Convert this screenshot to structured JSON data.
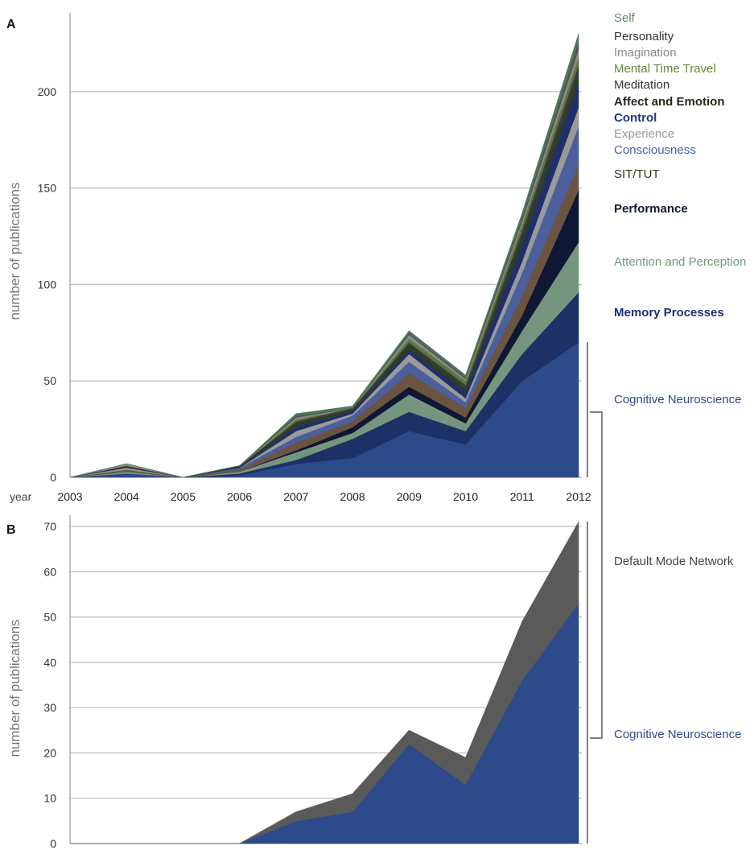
{
  "chart_data": [
    {
      "panel": "A",
      "type": "area",
      "stacked": true,
      "ylabel": "number of publications",
      "x_prefix": "year",
      "x": [
        2003,
        2004,
        2005,
        2006,
        2007,
        2008,
        2009,
        2010,
        2011,
        2012
      ],
      "x_tick_labels": [
        "2003",
        "2004",
        "2005",
        "2006",
        "2007",
        "2008",
        "2009",
        "2010",
        "2011",
        "2012"
      ],
      "ylim": [
        0,
        235
      ],
      "y_ticks": [
        0,
        50,
        100,
        150,
        200
      ],
      "grid": true,
      "legend_placement": "right",
      "series": [
        {
          "name": "Cognitive Neuroscience",
          "color": "#2d4a8a",
          "values": [
            0,
            2,
            0,
            1,
            7,
            10,
            24,
            17,
            50,
            70
          ]
        },
        {
          "name": "Memory Processes",
          "color": "#1e3166",
          "values": [
            0,
            0,
            0,
            1,
            2,
            10,
            10,
            7,
            14,
            26
          ]
        },
        {
          "name": "Attention and Perception",
          "color": "#76957e",
          "values": [
            0,
            1,
            0,
            1,
            4,
            3,
            9,
            4,
            12,
            26
          ]
        },
        {
          "name": "Performance",
          "color": "#0e1733",
          "values": [
            0,
            0,
            0,
            0,
            1,
            3,
            4,
            3,
            8,
            27
          ]
        },
        {
          "name": "SIT/TUT",
          "color": "#6b5440",
          "values": [
            0,
            1,
            0,
            1,
            4,
            3,
            7,
            5,
            10,
            13
          ]
        },
        {
          "name": "Consciousness",
          "color": "#4a5f9c",
          "values": [
            0,
            0,
            0,
            1,
            3,
            3,
            6,
            3,
            12,
            20
          ]
        },
        {
          "name": "Experience",
          "color": "#9a9a9a",
          "values": [
            0,
            1,
            0,
            0,
            3,
            1,
            4,
            2,
            6,
            10
          ]
        },
        {
          "name": "Control",
          "color": "#1f2f6e",
          "values": [
            0,
            0,
            0,
            0,
            2,
            1,
            2,
            3,
            8,
            12
          ]
        },
        {
          "name": "Affect and Emotion",
          "color": "#2e3a2a",
          "values": [
            0,
            1,
            0,
            1,
            2,
            1,
            3,
            2,
            5,
            6
          ]
        },
        {
          "name": "Meditation",
          "color": "#3d3d3d",
          "values": [
            0,
            0,
            0,
            0,
            1,
            1,
            1,
            2,
            3,
            4
          ]
        },
        {
          "name": "Mental Time Travel",
          "color": "#5a7a3a",
          "values": [
            0,
            0,
            0,
            0,
            1,
            0,
            2,
            2,
            3,
            4
          ]
        },
        {
          "name": "Imagination",
          "color": "#8a8a8a",
          "values": [
            0,
            1,
            0,
            0,
            1,
            0,
            2,
            1,
            2,
            4
          ]
        },
        {
          "name": "Personality",
          "color": "#555555",
          "values": [
            0,
            0,
            0,
            0,
            1,
            0,
            1,
            1,
            2,
            4
          ]
        },
        {
          "name": "Self",
          "color": "#4d7a5a",
          "values": [
            0,
            0,
            0,
            0,
            1,
            1,
            1,
            1,
            2,
            4
          ]
        }
      ],
      "panel_label": "A"
    },
    {
      "panel": "B",
      "type": "area",
      "stacked": true,
      "ylabel": "number of publications",
      "x": [
        2003,
        2004,
        2005,
        2006,
        2007,
        2008,
        2009,
        2010,
        2011,
        2012
      ],
      "ylim": [
        0,
        70
      ],
      "y_ticks": [
        0,
        10,
        20,
        30,
        40,
        50,
        60,
        70
      ],
      "grid": true,
      "legend_placement": "right",
      "series": [
        {
          "name": "Cognitive Neuroscience",
          "color": "#2d4a8a",
          "values": [
            0,
            0,
            0,
            0,
            5,
            7,
            22,
            13,
            36,
            53
          ]
        },
        {
          "name": "Default Mode Network",
          "color": "#5a5a5a",
          "values": [
            0,
            0,
            0,
            0,
            2,
            4,
            3,
            6,
            13,
            18
          ]
        }
      ],
      "panel_label": "B"
    }
  ]
}
